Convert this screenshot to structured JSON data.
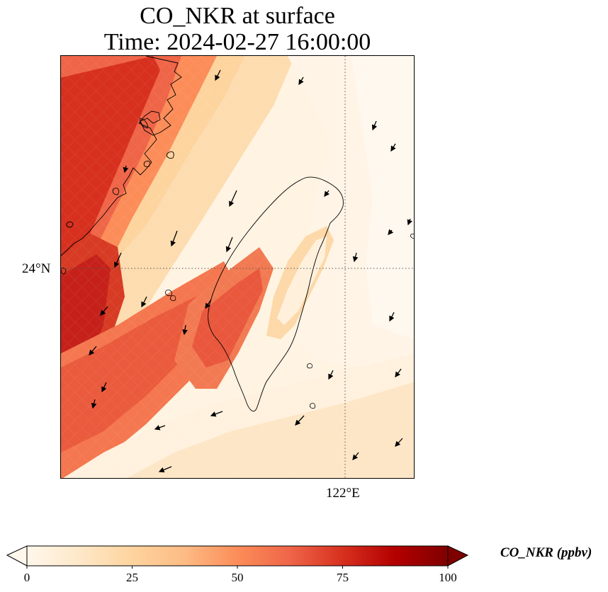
{
  "title": {
    "line1": "CO_NKR at surface",
    "line2": "Time: 2024-02-27 16:00:00"
  },
  "map": {
    "variable": "CO_NKR",
    "level": "surface",
    "region_shown": "Taiwan and Taiwan Strait / Fujian coast",
    "lat_tick": "24°N",
    "lon_tick": "122°E",
    "gridlines": "dotted",
    "overlay": "wind vectors (black arrows)",
    "coastline_color": "#000000"
  },
  "colorbar": {
    "label": "CO_NKR (ppbv)",
    "ticks": [
      "0",
      "25",
      "50",
      "75",
      "100"
    ],
    "min": 0,
    "max": 100,
    "extend": "both",
    "colormap": "OrRd",
    "colors": [
      "#fff7ec",
      "#fee8c8",
      "#fdd49e",
      "#fdbb84",
      "#fc8d59",
      "#ef6548",
      "#d7301f",
      "#b30000",
      "#7f0000"
    ]
  },
  "chart_data": {
    "type": "heatmap",
    "title": "CO_NKR at surface\nTime: 2024-02-27 16:00:00",
    "colorbar_label": "CO_NKR (ppbv)",
    "value_range": [
      0,
      100
    ],
    "lat_gridline": "24°N",
    "lon_gridline": "122°E",
    "high_concentration_zone": "west-southwest Taiwan Strait along Fujian coast, values roughly 60-90 ppbv",
    "low_concentration_zone": "east of Taiwan and central Taiwan mountains, values roughly 0-20 ppbv",
    "wind_direction": "predominantly from northeast toward southwest"
  }
}
